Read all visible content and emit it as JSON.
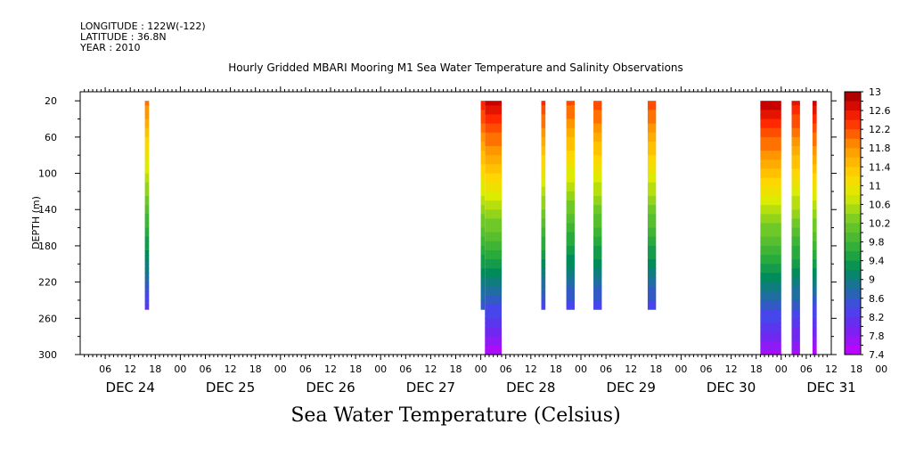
{
  "header": {
    "longitude": "LONGITUDE : 122W(-122)",
    "latitude": "LATITUDE : 36.8N",
    "year": "YEAR : 2010"
  },
  "chart_data": {
    "type": "heatmap",
    "title": "Hourly Gridded MBARI Mooring M1 Sea Water Temperature and Salinity Observations",
    "xlabel": "Sea Water Temperature (Celsius)",
    "ylabel": "DEPTH (m)",
    "x_range_hours": [
      0,
      180
    ],
    "y_range": [
      300,
      10
    ],
    "y_ticks": [
      20,
      60,
      100,
      140,
      180,
      220,
      260,
      300
    ],
    "hour_tick_labels": [
      "06",
      "12",
      "18",
      "00",
      "06",
      "12",
      "18",
      "00",
      "06",
      "12",
      "18",
      "00",
      "06",
      "12",
      "18",
      "00",
      "06",
      "12",
      "18",
      "00",
      "06",
      "12",
      "18",
      "00",
      "06",
      "12",
      "18",
      "00",
      "06",
      "12",
      "18",
      "00"
    ],
    "day_labels": [
      {
        "label": "DEC 24",
        "hour": 12
      },
      {
        "label": "DEC 25",
        "hour": 36
      },
      {
        "label": "DEC 26",
        "hour": 60
      },
      {
        "label": "DEC 27",
        "hour": 84
      },
      {
        "label": "DEC 28",
        "hour": 108
      },
      {
        "label": "DEC 29",
        "hour": 132
      },
      {
        "label": "DEC 30",
        "hour": 156
      },
      {
        "label": "DEC 31",
        "hour": 180
      }
    ],
    "colorbar": {
      "min": 7.4,
      "max": 13,
      "step": 0.2,
      "labels": [
        "13",
        "12.6",
        "12.2",
        "11.8",
        "11.4",
        "11",
        "10.6",
        "10.2",
        "9.8",
        "9.4",
        "9",
        "8.6",
        "8.2",
        "7.8",
        "7.4"
      ]
    },
    "columns": [
      {
        "start_hour": 15.5,
        "end_hour": 16.5,
        "depth_top": 20,
        "depth_bottom": 250,
        "temp_top": 12.0,
        "temp_bottom": 8.2
      },
      {
        "start_hour": 96.0,
        "end_hour": 97.0,
        "depth_top": 20,
        "depth_bottom": 250,
        "temp_top": 12.5,
        "temp_bottom": 8.5
      },
      {
        "start_hour": 97.0,
        "end_hour": 101.0,
        "depth_top": 20,
        "depth_bottom": 300,
        "temp_top": 12.8,
        "temp_bottom": 7.5
      },
      {
        "start_hour": 110.5,
        "end_hour": 111.5,
        "depth_top": 20,
        "depth_bottom": 250,
        "temp_top": 12.4,
        "temp_bottom": 8.3
      },
      {
        "start_hour": 116.5,
        "end_hour": 118.5,
        "depth_top": 20,
        "depth_bottom": 250,
        "temp_top": 12.2,
        "temp_bottom": 8.3
      },
      {
        "start_hour": 123.0,
        "end_hour": 125.0,
        "depth_top": 20,
        "depth_bottom": 250,
        "temp_top": 12.3,
        "temp_bottom": 8.3
      },
      {
        "start_hour": 136.0,
        "end_hour": 138.0,
        "depth_top": 20,
        "depth_bottom": 250,
        "temp_top": 12.3,
        "temp_bottom": 8.3
      },
      {
        "start_hour": 163.0,
        "end_hour": 168.0,
        "depth_top": 20,
        "depth_bottom": 300,
        "temp_top": 12.9,
        "temp_bottom": 7.6
      },
      {
        "start_hour": 170.5,
        "end_hour": 172.5,
        "depth_top": 20,
        "depth_bottom": 300,
        "temp_top": 12.6,
        "temp_bottom": 7.6
      },
      {
        "start_hour": 175.5,
        "end_hour": 176.5,
        "depth_top": 20,
        "depth_bottom": 300,
        "temp_top": 12.8,
        "temp_bottom": 7.5
      }
    ]
  }
}
